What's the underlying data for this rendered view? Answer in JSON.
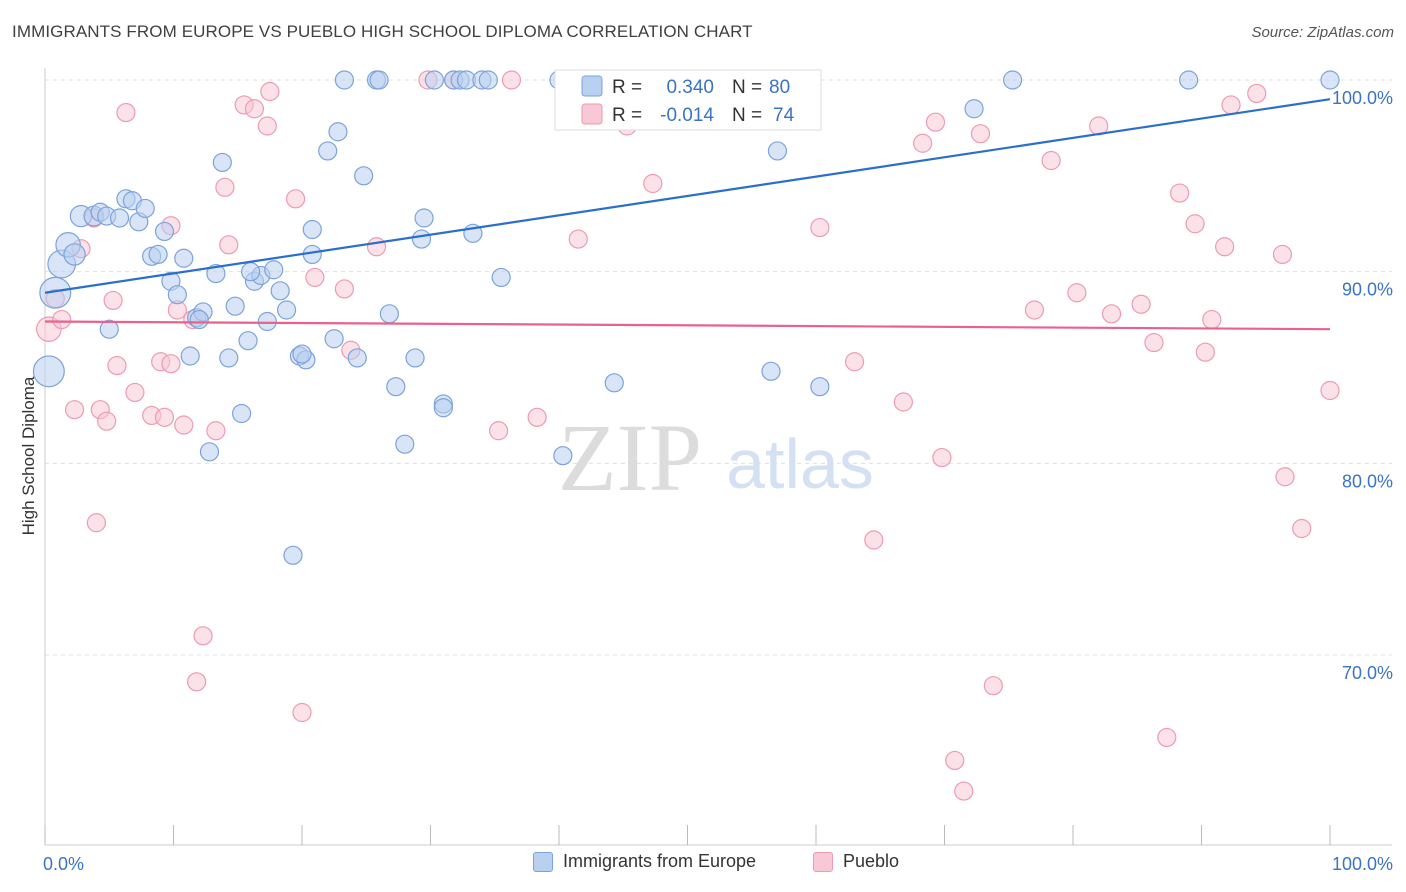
{
  "title": "IMMIGRANTS FROM EUROPE VS PUEBLO HIGH SCHOOL DIPLOMA CORRELATION CHART",
  "source": "Source: ZipAtlas.com",
  "watermark": {
    "zip": "ZIP",
    "atlas": "atlas"
  },
  "legend_top": [
    {
      "r_label": "R =",
      "r_value": "0.340",
      "n_label": "N =",
      "n_value": "80"
    },
    {
      "r_label": "R =",
      "r_value": "-0.014",
      "n_label": "N =",
      "n_value": "74"
    }
  ],
  "legend_bottom": [
    {
      "label": "Immigrants from Europe"
    },
    {
      "label": "Pueblo"
    }
  ],
  "colors": {
    "blue_fill": "#b9d0f0",
    "blue_stroke": "#7aa3dc",
    "blue_line": "#2a6fcc",
    "pink_fill": "#f8c8d6",
    "pink_stroke": "#ee9ab2",
    "pink_line": "#e8628b",
    "axis_text": "#3b73c4",
    "grid": "#e0e0e0"
  },
  "chart_data": {
    "type": "scatter",
    "title": "IMMIGRANTS FROM EUROPE VS PUEBLO HIGH SCHOOL DIPLOMA CORRELATION CHART",
    "xlabel": "",
    "ylabel": "High School Diploma",
    "xlim": [
      0,
      100
    ],
    "ylim": [
      60,
      102
    ],
    "x_tick_labels": [
      "0.0%",
      "100.0%"
    ],
    "y_ticks": [
      70,
      80,
      90,
      100
    ],
    "y_tick_labels": [
      "70.0%",
      "80.0%",
      "90.0%",
      "100.0%"
    ],
    "series": [
      {
        "name": "Immigrants from Europe",
        "color": "blue",
        "r": 0.34,
        "n": 80,
        "trend": {
          "x": [
            0,
            100
          ],
          "y": [
            88.9,
            99.0
          ]
        },
        "points": [
          [
            0.3,
            84.8,
            18
          ],
          [
            0.8,
            88.9,
            18
          ],
          [
            1.3,
            90.4,
            16
          ],
          [
            1.8,
            91.4,
            14
          ],
          [
            2.3,
            90.9,
            12
          ],
          [
            2.8,
            92.9,
            12
          ],
          [
            3.8,
            92.9,
            11
          ],
          [
            4.3,
            93.1,
            10
          ],
          [
            4.8,
            92.9,
            10
          ],
          [
            5.8,
            92.8,
            10
          ],
          [
            6.3,
            93.8,
            10
          ],
          [
            6.8,
            93.7,
            10
          ],
          [
            7.3,
            92.6,
            10
          ],
          [
            7.8,
            93.3,
            10
          ],
          [
            8.3,
            90.8,
            10
          ],
          [
            8.8,
            90.9,
            10
          ],
          [
            9.3,
            92.1,
            10
          ],
          [
            9.8,
            89.5,
            10
          ],
          [
            10.3,
            88.8,
            10
          ],
          [
            10.8,
            90.7,
            10
          ],
          [
            11.3,
            85.6,
            10
          ],
          [
            11.8,
            87.6,
            10
          ],
          [
            12.3,
            87.9,
            10
          ],
          [
            12.8,
            80.6,
            10
          ],
          [
            13.3,
            89.9,
            10
          ],
          [
            13.8,
            95.7,
            10
          ],
          [
            14.3,
            85.5,
            10
          ],
          [
            14.8,
            88.2,
            10
          ],
          [
            15.3,
            82.6,
            10
          ],
          [
            15.8,
            86.4,
            10
          ],
          [
            16.3,
            89.5,
            10
          ],
          [
            16.8,
            89.8,
            10
          ],
          [
            17.3,
            87.4,
            10
          ],
          [
            17.8,
            90.1,
            10
          ],
          [
            18.3,
            89.0,
            10
          ],
          [
            18.8,
            88.0,
            10
          ],
          [
            19.3,
            75.2,
            10
          ],
          [
            19.8,
            85.6,
            10
          ],
          [
            20.3,
            85.4,
            10
          ],
          [
            20.8,
            92.2,
            10
          ],
          [
            20.8,
            90.9,
            10
          ],
          [
            22.0,
            96.3,
            10
          ],
          [
            22.5,
            86.5,
            10
          ],
          [
            22.8,
            97.3,
            10
          ],
          [
            23.3,
            100.0,
            10
          ],
          [
            24.3,
            85.5,
            10
          ],
          [
            24.8,
            95.0,
            10
          ],
          [
            25.8,
            100.0,
            10
          ],
          [
            26.0,
            100.0,
            10
          ],
          [
            26.8,
            87.8,
            10
          ],
          [
            27.3,
            84.0,
            10
          ],
          [
            28.0,
            81.0,
            10
          ],
          [
            28.8,
            85.5,
            10
          ],
          [
            29.3,
            91.7,
            10
          ],
          [
            29.5,
            92.8,
            10
          ],
          [
            30.3,
            100.0,
            10
          ],
          [
            31.0,
            83.1,
            10
          ],
          [
            31.0,
            82.9,
            10
          ],
          [
            31.8,
            100.0,
            10
          ],
          [
            32.3,
            100.0,
            10
          ],
          [
            32.8,
            100.0,
            10
          ],
          [
            33.3,
            92.0,
            10
          ],
          [
            34.0,
            100.0,
            10
          ],
          [
            34.5,
            100.0,
            10
          ],
          [
            35.5,
            89.7,
            10
          ],
          [
            40.0,
            100.0,
            10
          ],
          [
            40.3,
            80.4,
            10
          ],
          [
            44.3,
            84.2,
            10
          ],
          [
            47.5,
            100.0,
            10
          ],
          [
            56.5,
            84.8,
            10
          ],
          [
            57.0,
            96.3,
            10
          ],
          [
            60.3,
            84.0,
            10
          ],
          [
            72.3,
            98.5,
            10
          ],
          [
            75.3,
            100.0,
            10
          ],
          [
            89.0,
            100.0,
            10
          ],
          [
            100.0,
            100.0,
            10
          ],
          [
            12.0,
            87.5,
            10
          ],
          [
            5.0,
            87.0,
            10
          ],
          [
            20.0,
            85.7,
            10
          ],
          [
            16.0,
            90.0,
            10
          ]
        ]
      },
      {
        "name": "Pueblo",
        "color": "pink",
        "r": -0.014,
        "n": 74,
        "trend": {
          "x": [
            0,
            100
          ],
          "y": [
            87.4,
            87.0
          ]
        },
        "points": [
          [
            0.3,
            87.0,
            14
          ],
          [
            0.8,
            88.6,
            10
          ],
          [
            1.3,
            87.5,
            10
          ],
          [
            2.3,
            82.8,
            10
          ],
          [
            2.8,
            91.2,
            10
          ],
          [
            3.8,
            92.8,
            10
          ],
          [
            4.0,
            76.9,
            10
          ],
          [
            4.3,
            82.8,
            10
          ],
          [
            4.8,
            82.2,
            10
          ],
          [
            5.3,
            88.5,
            10
          ],
          [
            5.6,
            85.1,
            10
          ],
          [
            6.3,
            98.3,
            10
          ],
          [
            7.0,
            83.7,
            10
          ],
          [
            8.3,
            82.5,
            10
          ],
          [
            9.0,
            85.3,
            10
          ],
          [
            9.3,
            82.4,
            10
          ],
          [
            9.8,
            85.2,
            10
          ],
          [
            10.3,
            88.0,
            10
          ],
          [
            10.8,
            82.0,
            10
          ],
          [
            11.5,
            87.5,
            10
          ],
          [
            11.8,
            68.6,
            10
          ],
          [
            12.3,
            71.0,
            10
          ],
          [
            13.3,
            81.7,
            10
          ],
          [
            14.0,
            94.4,
            10
          ],
          [
            15.5,
            98.7,
            10
          ],
          [
            16.3,
            98.5,
            10
          ],
          [
            17.3,
            97.6,
            10
          ],
          [
            17.5,
            99.4,
            10
          ],
          [
            19.5,
            93.8,
            10
          ],
          [
            20.0,
            67.0,
            10
          ],
          [
            21.0,
            89.7,
            10
          ],
          [
            23.3,
            89.1,
            10
          ],
          [
            23.8,
            85.9,
            10
          ],
          [
            25.8,
            91.3,
            10
          ],
          [
            29.8,
            100.0,
            10
          ],
          [
            31.8,
            100.0,
            10
          ],
          [
            35.3,
            81.7,
            10
          ],
          [
            36.3,
            100.0,
            10
          ],
          [
            38.3,
            82.4,
            10
          ],
          [
            41.5,
            91.7,
            10
          ],
          [
            45.3,
            97.6,
            10
          ],
          [
            47.3,
            94.6,
            10
          ],
          [
            60.3,
            92.3,
            10
          ],
          [
            63.0,
            85.3,
            10
          ],
          [
            64.5,
            76.0,
            10
          ],
          [
            66.8,
            83.2,
            10
          ],
          [
            68.3,
            96.7,
            10
          ],
          [
            69.3,
            97.8,
            10
          ],
          [
            69.8,
            80.3,
            10
          ],
          [
            70.8,
            64.5,
            10
          ],
          [
            71.5,
            62.9,
            10
          ],
          [
            72.8,
            97.2,
            10
          ],
          [
            73.8,
            68.4,
            10
          ],
          [
            77.0,
            88.0,
            10
          ],
          [
            78.3,
            95.8,
            10
          ],
          [
            80.3,
            88.9,
            10
          ],
          [
            82.0,
            97.6,
            10
          ],
          [
            83.0,
            87.8,
            10
          ],
          [
            85.3,
            88.3,
            10
          ],
          [
            86.3,
            86.3,
            10
          ],
          [
            87.3,
            65.7,
            10
          ],
          [
            88.3,
            94.1,
            10
          ],
          [
            89.5,
            92.5,
            10
          ],
          [
            90.3,
            85.8,
            10
          ],
          [
            90.8,
            87.5,
            10
          ],
          [
            91.8,
            91.3,
            10
          ],
          [
            92.3,
            98.7,
            10
          ],
          [
            94.3,
            99.3,
            10
          ],
          [
            96.3,
            90.9,
            10
          ],
          [
            96.5,
            79.3,
            10
          ],
          [
            97.8,
            76.6,
            10
          ],
          [
            100.0,
            83.8,
            10
          ],
          [
            9.8,
            92.4,
            10
          ],
          [
            14.3,
            91.4,
            10
          ]
        ]
      }
    ]
  }
}
